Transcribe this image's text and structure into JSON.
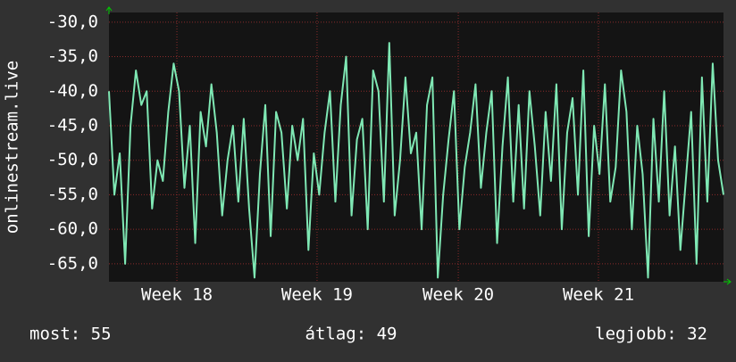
{
  "chart_data": {
    "type": "line",
    "y_label": "onlinestream.live",
    "x": [
      0,
      1,
      2,
      3,
      4,
      5,
      6,
      7,
      8,
      9,
      10,
      11,
      12,
      13,
      14,
      15,
      16,
      17,
      18,
      19,
      20,
      21,
      22,
      23,
      24,
      25,
      26,
      27,
      28,
      29,
      30,
      31,
      32,
      33,
      34,
      35,
      36,
      37,
      38,
      39,
      40,
      41,
      42,
      43,
      44,
      45,
      46,
      47,
      48,
      49,
      50,
      51,
      52,
      53,
      54,
      55,
      56,
      57,
      58,
      59,
      60,
      61,
      62,
      63,
      64,
      65,
      66,
      67,
      68,
      69,
      70,
      71,
      72,
      73,
      74,
      75,
      76,
      77,
      78,
      79,
      80,
      81,
      82,
      83,
      84,
      85,
      86,
      87,
      88,
      89,
      90,
      91,
      92,
      93,
      94,
      95,
      96,
      97,
      98,
      99,
      100,
      101,
      102,
      103,
      104,
      105,
      106,
      107,
      108,
      109,
      110,
      111,
      112,
      113,
      114
    ],
    "series": [
      {
        "color": "#7fe8b4",
        "values": [
          -40,
          -55,
          -49,
          -65,
          -45,
          -37,
          -42,
          -40,
          -57,
          -50,
          -53,
          -43,
          -36,
          -40,
          -54,
          -45,
          -62,
          -43,
          -48,
          -39,
          -46,
          -58,
          -50,
          -45,
          -56,
          -44,
          -57,
          -67,
          -52,
          -42,
          -61,
          -43,
          -46,
          -57,
          -45,
          -50,
          -44,
          -63,
          -49,
          -55,
          -46,
          -40,
          -56,
          -42,
          -35,
          -58,
          -47,
          -44,
          -60,
          -37,
          -40,
          -56,
          -33,
          -58,
          -50,
          -38,
          -49,
          -46,
          -60,
          -42,
          -38,
          -67,
          -55,
          -47,
          -40,
          -60,
          -51,
          -46,
          -39,
          -54,
          -46,
          -40,
          -62,
          -48,
          -38,
          -56,
          -42,
          -57,
          -40,
          -48,
          -58,
          -43,
          -53,
          -39,
          -60,
          -46,
          -41,
          -55,
          -37,
          -61,
          -45,
          -52,
          -39,
          -56,
          -51,
          -37,
          -43,
          -60,
          -45,
          -52,
          -67,
          -44,
          -56,
          -40,
          -58,
          -48,
          -63,
          -53,
          -43,
          -65,
          -38,
          -56,
          -36,
          -50,
          -55
        ]
      }
    ],
    "xlim": [
      0,
      114
    ],
    "xticks": [
      {
        "value": 12.6,
        "label": "Week 18"
      },
      {
        "value": 38.6,
        "label": "Week 19"
      },
      {
        "value": 64.8,
        "label": "Week 20"
      },
      {
        "value": 90.8,
        "label": "Week 21"
      }
    ],
    "ylim": [
      -67.6,
      -28.6
    ],
    "yticks": [
      {
        "value": -30,
        "label": "-30,0"
      },
      {
        "value": -35,
        "label": "-35,0"
      },
      {
        "value": -40,
        "label": "-40,0"
      },
      {
        "value": -45,
        "label": "-45,0"
      },
      {
        "value": -50,
        "label": "-50,0"
      },
      {
        "value": -55,
        "label": "-55,0"
      },
      {
        "value": -60,
        "label": "-60,0"
      },
      {
        "value": -65,
        "label": "-65,0"
      }
    ],
    "grid": true,
    "stats": [
      "most: 55",
      "átlag: 49",
      "legjobb: 32"
    ]
  }
}
